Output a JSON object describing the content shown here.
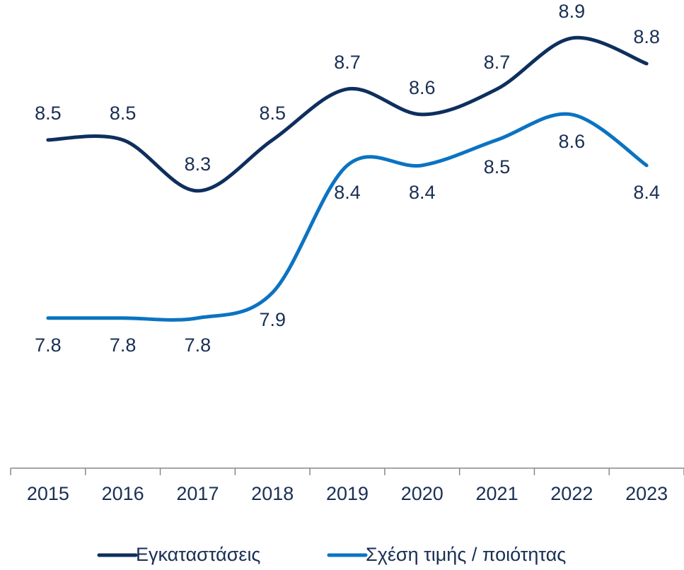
{
  "chart_data": {
    "type": "line",
    "categories": [
      "2015",
      "2016",
      "2017",
      "2018",
      "2019",
      "2020",
      "2021",
      "2022",
      "2023"
    ],
    "series": [
      {
        "name": "Εγκαταστάσεις",
        "color": "#0e2f5e",
        "values": [
          8.5,
          8.5,
          8.3,
          8.5,
          8.7,
          8.6,
          8.7,
          8.9,
          8.8
        ]
      },
      {
        "name": "Σχέση τιμής / ποιότητας",
        "color": "#0b73c2",
        "values": [
          7.8,
          7.8,
          7.8,
          7.9,
          8.4,
          8.4,
          8.5,
          8.6,
          8.4
        ]
      }
    ],
    "ylim": [
      7.21,
      9.05
    ],
    "legend": "bottom"
  }
}
